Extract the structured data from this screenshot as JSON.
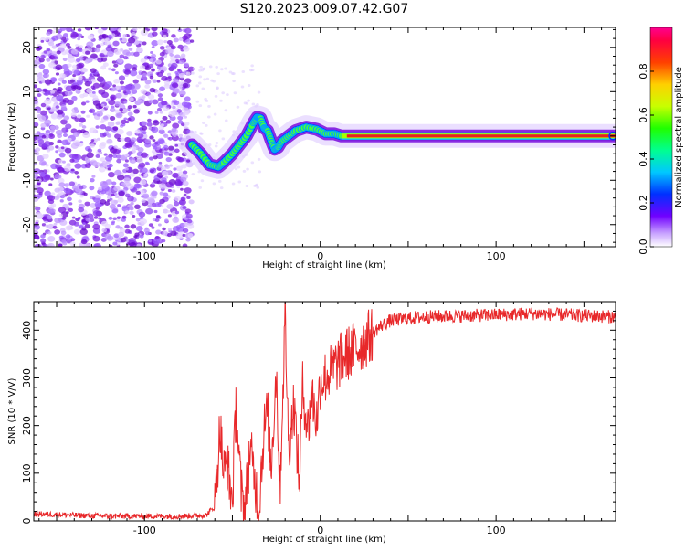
{
  "title": "S120.2023.009.07.42.G07",
  "colors": {
    "snr_line": "#e8282a",
    "ridge_high": "#e82020",
    "scatter": "#7a1be0"
  },
  "chart_data": [
    {
      "type": "heatmap",
      "xlabel": "Height of straight line (km)",
      "ylabel": "Frequency (Hz)",
      "xlim": [
        -163,
        168
      ],
      "ylim": [
        -25,
        24.5
      ],
      "xticks": [
        -100,
        0,
        100
      ],
      "yticks": [
        -20,
        -10,
        0,
        10,
        20
      ],
      "colorbar": {
        "label": "Normalized spectral amplitude",
        "range": [
          0,
          1
        ],
        "ticks": [
          "0.0",
          "0.2",
          "0.4",
          "0.6",
          "0.8"
        ],
        "colormap": "rainbow (purple-blue-cyan-green-yellow-red-magenta)"
      },
      "ridge": {
        "x": [
          -73,
          -68,
          -63,
          -58,
          -55,
          -50,
          -46,
          -42,
          -38,
          -36,
          -34,
          -32,
          -30,
          -28,
          -26,
          -24,
          -22,
          -18,
          -14,
          -8,
          -2,
          3,
          8,
          12,
          20,
          40,
          80,
          120,
          168
        ],
        "y": [
          -2,
          -4,
          -6.5,
          -7,
          -6,
          -4,
          -2,
          0,
          3,
          4.2,
          4,
          1.8,
          1.2,
          -1,
          -3,
          -2.5,
          -1.2,
          0,
          1.2,
          2,
          1.5,
          0.5,
          0.5,
          0,
          0,
          0,
          0,
          0,
          0
        ]
      },
      "noise_region_x": [
        -163,
        -73
      ]
    },
    {
      "type": "line",
      "xlabel": "Height of straight line (km)",
      "ylabel": "SNR (10 * V/V)",
      "xlim": [
        -163,
        168
      ],
      "ylim": [
        0,
        460
      ],
      "xticks": [
        -100,
        0,
        100
      ],
      "yticks": [
        0,
        100,
        200,
        300,
        400
      ],
      "series": [
        {
          "x": [
            -163,
            -140,
            -120,
            -100,
            -80,
            -65,
            -60,
            -57,
            -55,
            -53,
            -50,
            -48,
            -45,
            -43,
            -40,
            -37,
            -35,
            -32,
            -30,
            -28,
            -25,
            -23,
            -20,
            -18,
            -15,
            -12,
            -10,
            -7,
            -5,
            -2,
            0,
            5,
            10,
            15,
            20,
            25,
            30,
            35,
            40,
            50,
            60,
            80,
            100,
            120,
            140,
            168
          ],
          "y": [
            15,
            12,
            10,
            10,
            10,
            12,
            30,
            200,
            100,
            120,
            40,
            240,
            60,
            20,
            150,
            80,
            30,
            190,
            230,
            110,
            320,
            60,
            430,
            150,
            250,
            80,
            280,
            190,
            270,
            210,
            290,
            310,
            330,
            350,
            360,
            375,
            395,
            410,
            420,
            425,
            428,
            430,
            432,
            435,
            432,
            428
          ]
        }
      ]
    }
  ]
}
